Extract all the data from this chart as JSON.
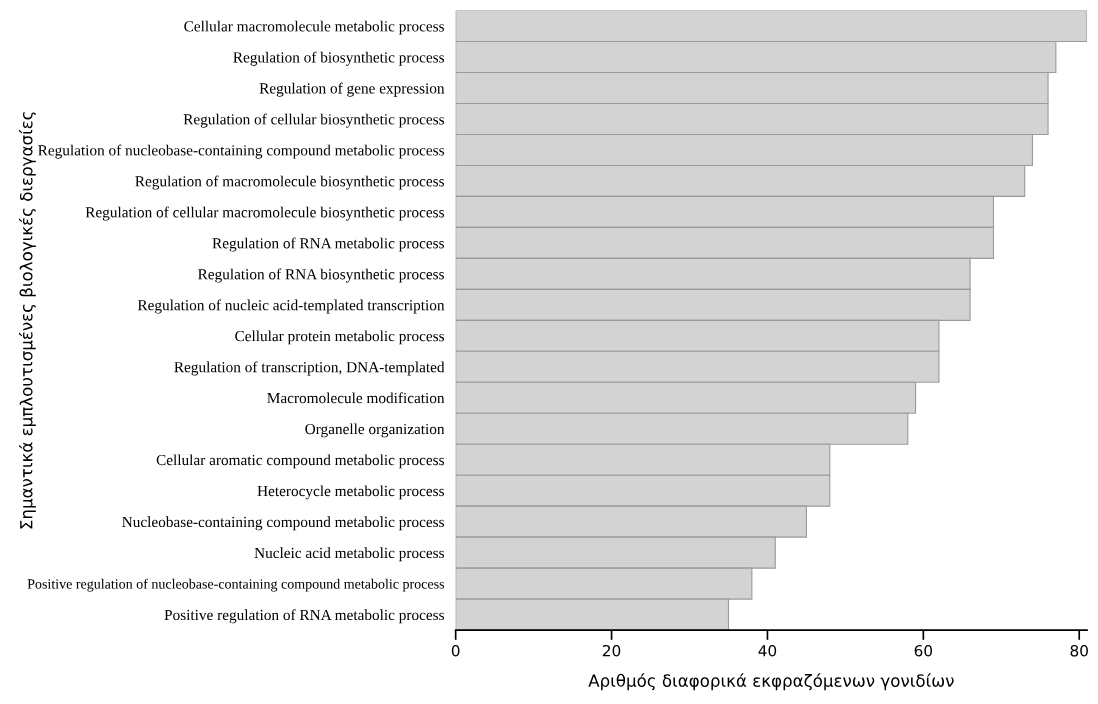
{
  "chart_data": {
    "type": "bar",
    "orientation": "horizontal",
    "categories": [
      "Cellular macromolecule metabolic process",
      "Regulation of biosynthetic process",
      "Regulation of gene expression",
      "Regulation of cellular biosynthetic process",
      "Regulation of nucleobase-containing compound metabolic process",
      "Regulation of macromolecule biosynthetic process",
      "Regulation of cellular macromolecule biosynthetic process",
      "Regulation of RNA metabolic process",
      "Regulation of RNA biosynthetic process",
      "Regulation of nucleic acid-templated transcription",
      "Cellular protein metabolic process",
      "Regulation of transcription, DNA-templated",
      "Macromolecule modification",
      "Organelle organization",
      "Cellular aromatic compound metabolic process",
      "Heterocycle metabolic process",
      "Nucleobase-containing compound metabolic process",
      "Nucleic acid metabolic process",
      "Positive regulation of nucleobase-containing compound metabolic process",
      "Positive regulation of RNA metabolic process"
    ],
    "values": [
      81,
      77,
      76,
      76,
      74,
      73,
      69,
      69,
      66,
      66,
      62,
      62,
      59,
      58,
      48,
      48,
      45,
      41,
      38,
      35
    ],
    "color": "#d3d3d3",
    "xlim": [
      0,
      81
    ],
    "xticks": [
      0,
      20,
      40,
      60,
      80
    ],
    "xlabel": "Αριθμός διαφορικά εκφραζόμενων γονιδίων",
    "ylabel": "Σημαντικά εμπλουτισμένες βιολογικές διεργασίες",
    "grid": false,
    "legend": false
  }
}
